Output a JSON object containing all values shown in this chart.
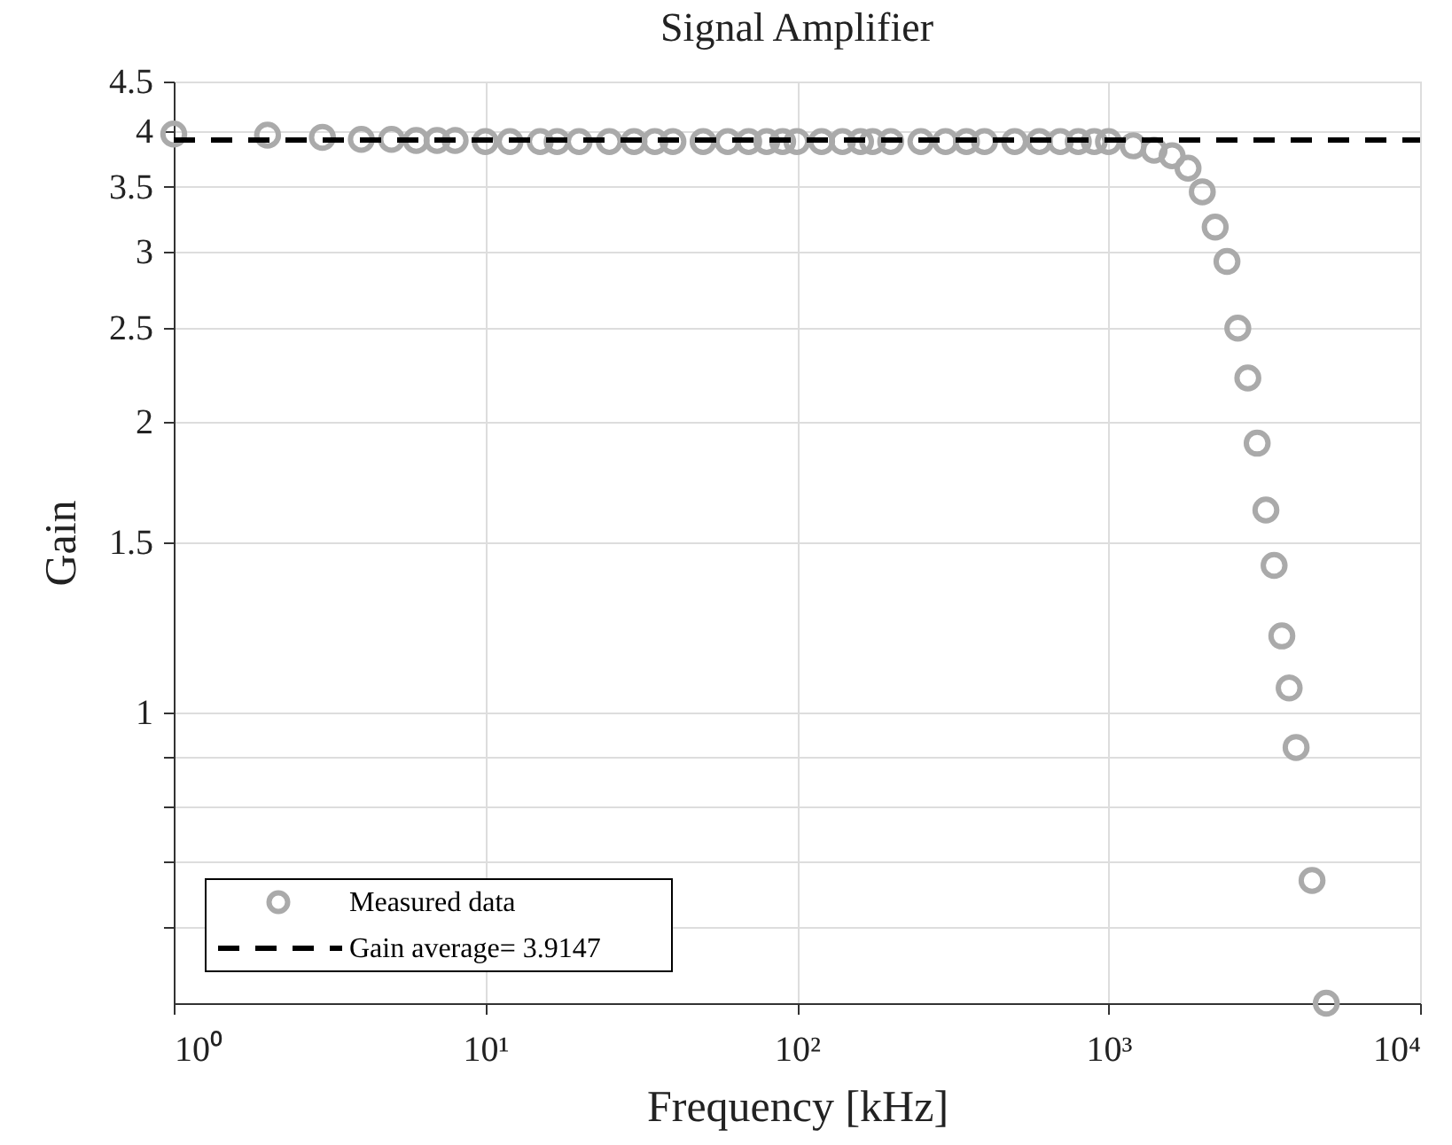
{
  "chart_data": {
    "type": "scatter",
    "title": "Signal Amplifier",
    "xlabel": "Frequency [kHz]",
    "ylabel": "Gain",
    "log": "xy",
    "grid": true,
    "legend": "bottom left",
    "xlim": [
      1,
      10000
    ],
    "ylim": [
      0.5,
      4.5
    ],
    "xticks": [
      {
        "value": 1,
        "label": "10⁰"
      },
      {
        "value": 10,
        "label": "10¹"
      },
      {
        "value": 100,
        "label": "10²"
      },
      {
        "value": 1000,
        "label": "10³"
      },
      {
        "value": 10000,
        "label": "10⁴"
      }
    ],
    "yticks": [
      {
        "value": 0.6,
        "label": null
      },
      {
        "value": 0.7,
        "label": null
      },
      {
        "value": 0.8,
        "label": null
      },
      {
        "value": 0.9,
        "label": null
      },
      1,
      1.5,
      2,
      2.5,
      3,
      3.5,
      4,
      4.5
    ],
    "series": [
      {
        "name": "Measured data",
        "marker": "circle",
        "color": "#aaaaaa",
        "x": [
          1,
          2,
          3,
          4,
          5,
          6,
          7,
          8,
          10,
          12,
          15,
          17,
          20,
          25,
          30,
          35,
          40,
          50,
          60,
          70,
          80,
          90,
          100,
          120,
          140,
          160,
          175,
          200,
          250,
          300,
          350,
          400,
          500,
          600,
          700,
          800,
          900,
          1000,
          1200,
          1400,
          1600,
          1800,
          2000,
          2200,
          2400,
          2600,
          2800,
          3000,
          3200,
          3400,
          3600,
          3800,
          4000,
          4500,
          5000
        ],
        "values": [
          3.97,
          3.96,
          3.94,
          3.92,
          3.92,
          3.91,
          3.91,
          3.91,
          3.9,
          3.9,
          3.9,
          3.9,
          3.9,
          3.9,
          3.9,
          3.9,
          3.9,
          3.9,
          3.9,
          3.9,
          3.9,
          3.9,
          3.9,
          3.9,
          3.9,
          3.9,
          3.9,
          3.9,
          3.9,
          3.9,
          3.9,
          3.9,
          3.9,
          3.9,
          3.9,
          3.9,
          3.9,
          3.9,
          3.86,
          3.82,
          3.77,
          3.66,
          3.46,
          3.18,
          2.93,
          2.5,
          2.22,
          1.9,
          1.62,
          1.42,
          1.2,
          1.06,
          0.92,
          0.67,
          0.5
        ]
      },
      {
        "name": "Gain average= 3.9147",
        "type": "line",
        "line_style": "dashed",
        "marker": "none",
        "color": "#000000",
        "x": [
          1,
          10000
        ],
        "values": [
          3.9147,
          3.9147
        ]
      }
    ]
  }
}
